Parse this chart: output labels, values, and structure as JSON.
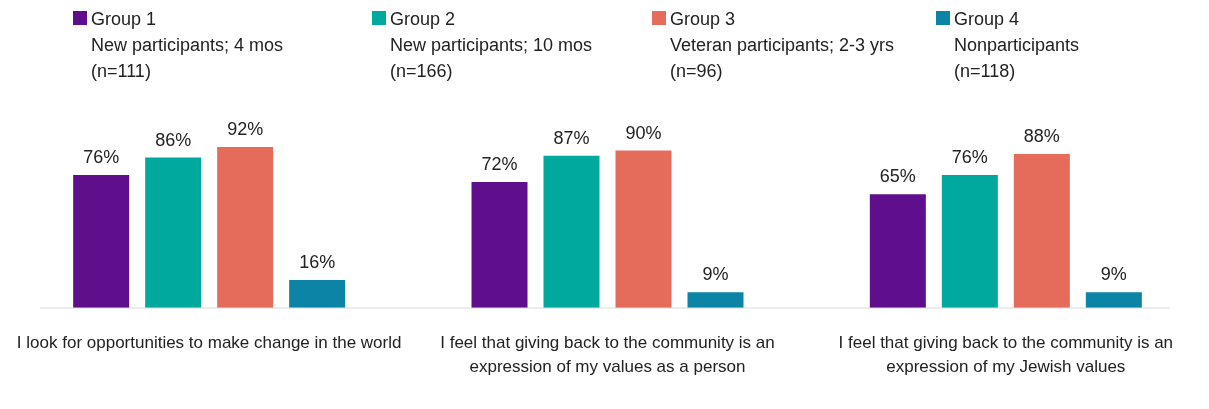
{
  "chart_data": {
    "type": "bar",
    "categories": [
      "I look for opportunities to make change in the world",
      "I feel that giving back to the community is an expression of my values as a person",
      "I feel that giving back to the community is an expression of my Jewish values"
    ],
    "legend": "top",
    "grid": false,
    "tick_labels": "x",
    "series": [
      {
        "name": "Group 1\nNew participants; 4 mos\n(n=111)",
        "color": "#5f0f8b",
        "values": [
          76,
          72,
          65
        ],
        "value_labels": [
          "76%",
          "72%",
          "65%"
        ]
      },
      {
        "name": "Group 2\nNew participants; 10 mos\n(n=166)",
        "color": "#00a99d",
        "values": [
          86,
          87,
          76
        ],
        "value_labels": [
          "86%",
          "87%",
          "76%"
        ]
      },
      {
        "name": "Group 3\nVeteran participants; 2-3 yrs\n(n=96)",
        "color": "#e56b5a",
        "values": [
          92,
          90,
          88
        ],
        "value_labels": [
          "92%",
          "90%",
          "88%"
        ]
      },
      {
        "name": "Group 4\nNonparticipants\n(n=118)",
        "color": "#0b84a5",
        "values": [
          16,
          9,
          9
        ],
        "value_labels": [
          "16%",
          "9%",
          "9%"
        ]
      }
    ]
  }
}
